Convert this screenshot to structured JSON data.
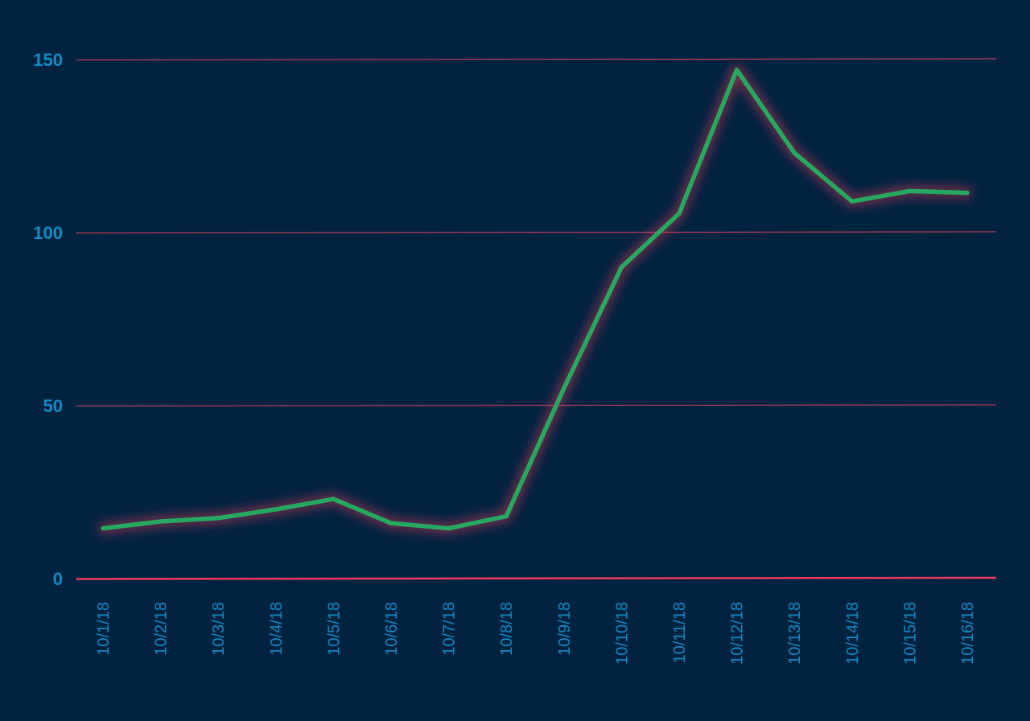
{
  "chart_data": {
    "type": "line",
    "title": "",
    "xlabel": "",
    "ylabel": "",
    "x": [
      "10/1/18",
      "10/2/18",
      "10/3/18",
      "10/4/18",
      "10/5/18",
      "10/6/18",
      "10/7/18",
      "10/8/18",
      "10/9/18",
      "10/10/18",
      "10/11/18",
      "10/12/18",
      "10/13/18",
      "10/14/18",
      "10/15/18",
      "10/16/18"
    ],
    "series": [
      {
        "values": [
          14.5,
          16.5,
          17.5,
          20,
          23,
          16,
          14.5,
          18,
          55,
          90,
          105.5,
          147,
          123,
          109,
          112,
          111.5
        ]
      }
    ],
    "ylim": [
      0,
      150
    ],
    "yticks": [
      0,
      50,
      100,
      150
    ],
    "ytick_labels": [
      "0",
      "50",
      "100",
      "150"
    ],
    "grid": true,
    "legend": "none",
    "colors": {
      "background": "#012340",
      "line": "#25A95F",
      "glow": "#F2385A",
      "gridline": "#E8425F",
      "zero_line": "#F2385A",
      "ytick_text": "#0E8DC8",
      "xtick_text": "#1487C2"
    }
  }
}
